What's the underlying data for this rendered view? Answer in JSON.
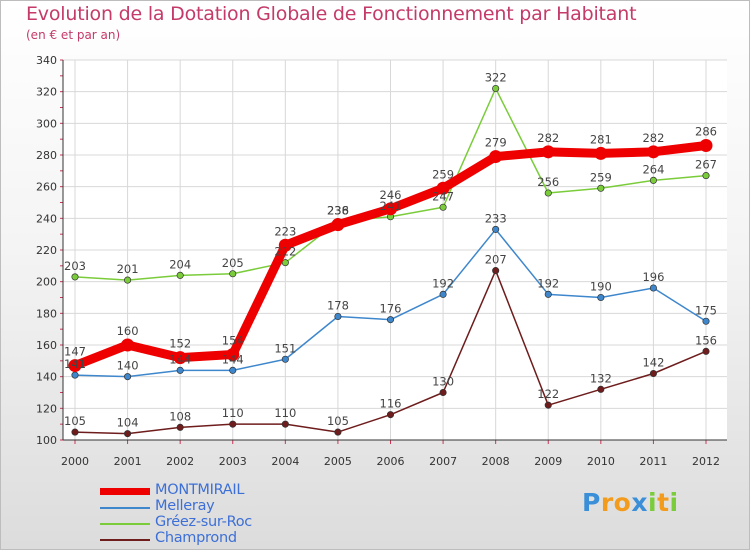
{
  "chart_data": {
    "type": "line",
    "title": "Evolution de la Dotation Globale de Fonctionnement par Habitant",
    "subtitle": "(en € et par an)",
    "xlabel": "",
    "ylabel": "",
    "categories": [
      "2000",
      "2001",
      "2002",
      "2003",
      "2004",
      "2005",
      "2006",
      "2007",
      "2008",
      "2009",
      "2010",
      "2011",
      "2012"
    ],
    "ylim": [
      100,
      340
    ],
    "yticks": [
      100,
      120,
      140,
      160,
      180,
      200,
      220,
      240,
      260,
      280,
      300,
      320,
      340
    ],
    "grid": true,
    "series": [
      {
        "name": "MONTMIRAIL",
        "color": "#ee0000",
        "values": [
          147,
          160,
          152,
          154,
          223,
          236,
          246,
          259,
          279,
          282,
          281,
          282,
          286
        ]
      },
      {
        "name": "Melleray",
        "color": "#3e87cc",
        "values": [
          141,
          140,
          144,
          144,
          151,
          178,
          176,
          192,
          233,
          192,
          190,
          196,
          175
        ]
      },
      {
        "name": "Gréez-sur-Roc",
        "color": "#7acc3a",
        "values": [
          203,
          201,
          204,
          205,
          212,
          238,
          241,
          247,
          322,
          256,
          259,
          264,
          267
        ]
      },
      {
        "name": "Champrond",
        "color": "#6e1c1c",
        "values": [
          105,
          104,
          108,
          110,
          110,
          105,
          116,
          130,
          207,
          122,
          132,
          142,
          156
        ]
      }
    ]
  },
  "logo": {
    "text": "Proxiti",
    "letters": [
      "P",
      "r",
      "o",
      "x",
      "i",
      "t",
      "i"
    ]
  }
}
